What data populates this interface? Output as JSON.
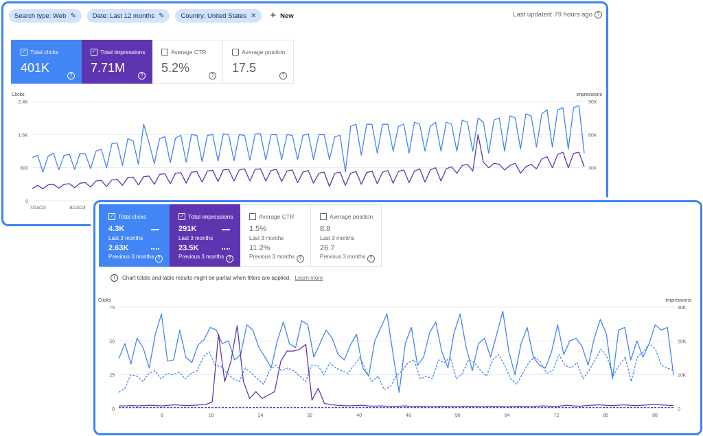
{
  "top_panel": {
    "filters": [
      {
        "label": "Search type: Web",
        "icon": "pencil-icon"
      },
      {
        "label": "Date: Last 12 months",
        "icon": "pencil-icon"
      },
      {
        "label": "Country: United States",
        "icon": "close-icon"
      }
    ],
    "new_label": "New",
    "last_updated": "Last updated: 79 hours ago",
    "metrics": [
      {
        "label": "Total clicks",
        "value": "401K",
        "checked": true,
        "color": "#4285f4"
      },
      {
        "label": "Total impressions",
        "value": "7.71M",
        "checked": true,
        "color": "#5e35b1"
      },
      {
        "label": "Average CTR",
        "value": "5.2%",
        "checked": false
      },
      {
        "label": "Average position",
        "value": "17.5",
        "checked": false
      }
    ]
  },
  "bottom_panel": {
    "metrics": [
      {
        "label": "Total clicks",
        "checked": true,
        "color": "#4285f4",
        "current": "4.3K",
        "current_label": "Last 3 months",
        "previous": "2.63K",
        "previous_label": "Previous 3 months"
      },
      {
        "label": "Total impressions",
        "checked": true,
        "color": "#5e35b1",
        "current": "291K",
        "current_label": "Last 3 months",
        "previous": "23.5K",
        "previous_label": "Previous 3 months"
      },
      {
        "label": "Average CTR",
        "checked": false,
        "current": "1.5%",
        "current_label": "Last 3 months",
        "previous": "11.2%",
        "previous_label": "Previous 3 months"
      },
      {
        "label": "Average position",
        "checked": false,
        "current": "8.8",
        "current_label": "Last 3 months",
        "previous": "26.7",
        "previous_label": "Previous 3 months"
      }
    ],
    "notice": "Chart totals and table results might be partial when filters are applied.",
    "learn_more": "Learn more"
  },
  "chart_data": [
    {
      "type": "line",
      "ylabel": "Clicks",
      "y2label": "Impressions",
      "ylim": [
        0,
        2400
      ],
      "y2lim": [
        0,
        90000
      ],
      "yticks": [
        "0",
        "800",
        "1.6K",
        "2.4K"
      ],
      "y2ticks": [
        "30K",
        "60K",
        "90K"
      ],
      "xticks": [
        "7/23/23",
        "8/13/23"
      ],
      "series": [
        {
          "name": "Clicks",
          "color": "#4285f4",
          "values": [
            1050,
            1100,
            700,
            1080,
            1150,
            750,
            1100,
            1120,
            760,
            1150,
            1130,
            780,
            1200,
            1250,
            800,
            1380,
            1400,
            850,
            1500,
            1450,
            880,
            1850,
            1400,
            900,
            1500,
            1550,
            920,
            1520,
            1580,
            930,
            1600,
            1580,
            950,
            1580,
            1600,
            960,
            1620,
            1600,
            970,
            1600,
            1580,
            980,
            1620,
            1620,
            990,
            1600,
            1600,
            1000,
            1600,
            1580,
            1000,
            1580,
            1620,
            1000,
            1600,
            1600,
            1000,
            1550,
            1580,
            700,
            1800,
            1850,
            1100,
            1850,
            1850,
            1150,
            1850,
            1850,
            1200,
            1800,
            1850,
            1150,
            1900,
            1850,
            1200,
            1800,
            1900,
            1200,
            1900,
            1850,
            1200,
            1950,
            1900,
            1200,
            2000,
            1900,
            1150,
            1950,
            2000,
            1200,
            2050,
            2000,
            1250,
            2100,
            2050,
            1300,
            2100,
            2200,
            1300,
            2200,
            2250,
            1250,
            2250,
            2300,
            1150
          ]
        },
        {
          "name": "Impressions",
          "color": "#5e35b1",
          "axis": "right",
          "values": [
            11000,
            14000,
            11000,
            14500,
            15000,
            11500,
            15000,
            15500,
            12000,
            16000,
            16500,
            12500,
            18000,
            18500,
            13000,
            19000,
            19500,
            14000,
            21000,
            21500,
            14500,
            22000,
            22500,
            15000,
            24000,
            24500,
            15500,
            25000,
            25500,
            16000,
            26000,
            26500,
            17000,
            27000,
            27500,
            17500,
            28000,
            28500,
            18000,
            28000,
            29000,
            18000,
            28500,
            29000,
            18000,
            27500,
            28500,
            17500,
            27000,
            28000,
            16500,
            26000,
            27500,
            16000,
            25000,
            26000,
            13000,
            25000,
            26000,
            14000,
            25000,
            26500,
            15000,
            25500,
            27000,
            15500,
            26000,
            27500,
            16000,
            26500,
            28000,
            16500,
            27000,
            29000,
            17000,
            28000,
            30000,
            18000,
            29000,
            31000,
            25000,
            32000,
            33000,
            27000,
            60000,
            35000,
            30000,
            34000,
            33000,
            28000,
            32000,
            34000,
            25000,
            31000,
            33000,
            29000,
            38000,
            40000,
            30000,
            42000,
            44000,
            30000,
            43000,
            44000,
            31000
          ]
        }
      ]
    },
    {
      "type": "line",
      "ylabel": "Clicks",
      "y2label": "Impressions",
      "ylim": [
        0,
        75
      ],
      "y2lim": [
        0,
        30000
      ],
      "yticks": [
        "0",
        "25",
        "50",
        "75"
      ],
      "y2ticks": [
        "0",
        "10K",
        "20K",
        "30K"
      ],
      "xticks": [
        "8",
        "16",
        "24",
        "32",
        "40",
        "48",
        "56",
        "64",
        "72",
        "80",
        "88"
      ],
      "x_range": [
        1,
        91
      ],
      "series": [
        {
          "name": "Clicks (Last 3 months)",
          "color": "#4285f4",
          "style": "solid",
          "values": [
            37,
            48,
            33,
            52,
            45,
            30,
            55,
            70,
            35,
            36,
            58,
            38,
            34,
            47,
            51,
            60,
            58,
            48,
            50,
            36,
            40,
            62,
            58,
            45,
            38,
            30,
            50,
            64,
            48,
            45,
            65,
            62,
            38,
            48,
            58,
            52,
            40,
            36,
            47,
            55,
            30,
            24,
            50,
            60,
            70,
            40,
            12,
            48,
            60,
            32,
            38,
            56,
            64,
            42,
            30,
            56,
            70,
            45,
            28,
            48,
            52,
            38,
            55,
            72,
            42,
            25,
            48,
            60,
            38,
            32,
            30,
            42,
            62,
            40,
            50,
            52,
            46,
            32,
            52,
            66,
            55,
            22,
            58,
            60,
            36,
            50,
            38,
            48,
            62,
            58,
            60,
            25
          ]
        },
        {
          "name": "Clicks (Previous 3 months)",
          "color": "#4285f4",
          "style": "dashed",
          "values": [
            12,
            15,
            25,
            24,
            20,
            26,
            28,
            22,
            26,
            25,
            27,
            22,
            26,
            28,
            38,
            42,
            32,
            31,
            26,
            22,
            20,
            30,
            26,
            22,
            18,
            28,
            32,
            28,
            30,
            28,
            24,
            20,
            32,
            32,
            25,
            34,
            30,
            28,
            26,
            32,
            38,
            28,
            20,
            24,
            14,
            16,
            24,
            28,
            34,
            36,
            22,
            24,
            22,
            36,
            34,
            38,
            22,
            26,
            36,
            34,
            28,
            24,
            36,
            40,
            32,
            22,
            18,
            26,
            34,
            38,
            34,
            26,
            28,
            40,
            32,
            30,
            34,
            22,
            28,
            36,
            44,
            38,
            24,
            32,
            38,
            20,
            38,
            42,
            48,
            44,
            32,
            30,
            28
          ]
        },
        {
          "name": "Impressions (Last 3 months)",
          "color": "#5e35b1",
          "style": "solid",
          "axis": "right",
          "values": [
            800,
            800,
            900,
            800,
            900,
            1000,
            900,
            800,
            1000,
            1100,
            1000,
            900,
            1000,
            1100,
            1200,
            2000,
            22000,
            8000,
            14000,
            24500,
            8000,
            3000,
            5000,
            3000,
            4000,
            5000,
            14000,
            17000,
            17000,
            17500,
            19000,
            2500,
            6000,
            1500,
            1200,
            1000,
            900,
            800,
            900,
            1000,
            800,
            700,
            800,
            700,
            600,
            700,
            800,
            600,
            700,
            600,
            500,
            600,
            700,
            600,
            500,
            600,
            700,
            600,
            500,
            600,
            700,
            600,
            500,
            600,
            700,
            600,
            500,
            700,
            800,
            700,
            600,
            800,
            1000,
            800,
            700,
            900,
            1000,
            1100,
            1000,
            900,
            1000,
            1100,
            1000,
            900,
            1000,
            1100,
            1200,
            1100,
            1000,
            900
          ]
        },
        {
          "name": "Impressions (Previous 3 months)",
          "color": "#5e35b1",
          "style": "dashed",
          "axis": "right",
          "values": [
            300,
            300,
            300,
            300,
            300,
            300,
            300,
            300,
            300,
            300,
            300,
            300,
            300,
            300,
            300,
            300,
            300,
            300,
            300,
            300,
            300,
            300,
            300,
            300,
            300,
            300,
            300,
            300,
            300,
            300,
            300,
            300,
            300,
            300,
            300,
            300,
            300,
            300,
            300,
            300,
            300,
            300,
            300,
            300,
            300,
            300,
            300,
            300,
            300,
            300,
            300,
            300,
            300,
            300,
            300,
            300,
            300,
            300,
            300,
            300,
            300,
            300,
            300,
            300,
            300,
            300,
            300,
            300,
            300,
            300,
            300,
            300,
            300,
            300,
            300,
            300,
            300,
            300,
            300,
            300,
            300,
            300,
            300,
            300,
            300,
            300,
            300,
            300,
            300,
            300
          ]
        }
      ]
    }
  ]
}
